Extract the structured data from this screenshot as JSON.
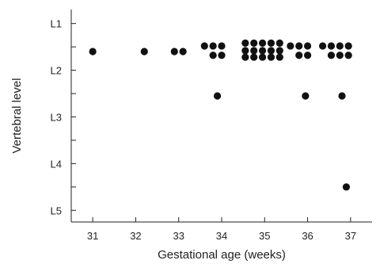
{
  "chart_data": {
    "type": "scatter",
    "title": "",
    "xlabel": "Gestational age (weeks)",
    "ylabel": "Vertebral level",
    "xlim": [
      30.5,
      37.5
    ],
    "x_ticks": [
      31,
      32,
      33,
      34,
      35,
      36,
      37
    ],
    "x_tick_labels": [
      "31",
      "32",
      "33",
      "34",
      "35",
      "36",
      "37"
    ],
    "ylim": [
      0.7,
      5.25
    ],
    "y_inverted": true,
    "y_ticks": [
      1,
      1.5,
      2,
      2.5,
      3,
      3.5,
      4,
      4.5,
      5
    ],
    "y_tick_labels": [
      "L1",
      "",
      "L2",
      "",
      "L3",
      "",
      "L4",
      "",
      "L5"
    ],
    "grid": false,
    "legend": "none",
    "points": [
      {
        "x": 31.0,
        "y": 1.6
      },
      {
        "x": 32.2,
        "y": 1.6
      },
      {
        "x": 32.9,
        "y": 1.6
      },
      {
        "x": 33.1,
        "y": 1.6
      },
      {
        "x": 33.6,
        "y": 1.48
      },
      {
        "x": 33.8,
        "y": 1.48
      },
      {
        "x": 34.0,
        "y": 1.48
      },
      {
        "x": 33.8,
        "y": 1.68
      },
      {
        "x": 34.0,
        "y": 1.68
      },
      {
        "x": 33.9,
        "y": 2.55
      },
      {
        "x": 34.55,
        "y": 1.42
      },
      {
        "x": 34.75,
        "y": 1.42
      },
      {
        "x": 34.95,
        "y": 1.42
      },
      {
        "x": 35.15,
        "y": 1.42
      },
      {
        "x": 35.35,
        "y": 1.42
      },
      {
        "x": 34.55,
        "y": 1.58
      },
      {
        "x": 34.75,
        "y": 1.58
      },
      {
        "x": 34.95,
        "y": 1.58
      },
      {
        "x": 35.15,
        "y": 1.58
      },
      {
        "x": 35.35,
        "y": 1.58
      },
      {
        "x": 34.55,
        "y": 1.72
      },
      {
        "x": 34.75,
        "y": 1.72
      },
      {
        "x": 34.95,
        "y": 1.72
      },
      {
        "x": 35.15,
        "y": 1.72
      },
      {
        "x": 35.35,
        "y": 1.72
      },
      {
        "x": 35.6,
        "y": 1.48
      },
      {
        "x": 35.8,
        "y": 1.48
      },
      {
        "x": 36.0,
        "y": 1.48
      },
      {
        "x": 35.8,
        "y": 1.68
      },
      {
        "x": 36.0,
        "y": 1.68
      },
      {
        "x": 35.95,
        "y": 2.55
      },
      {
        "x": 36.35,
        "y": 1.48
      },
      {
        "x": 36.55,
        "y": 1.48
      },
      {
        "x": 36.75,
        "y": 1.48
      },
      {
        "x": 36.95,
        "y": 1.48
      },
      {
        "x": 36.55,
        "y": 1.68
      },
      {
        "x": 36.75,
        "y": 1.68
      },
      {
        "x": 36.95,
        "y": 1.68
      },
      {
        "x": 36.8,
        "y": 2.55
      },
      {
        "x": 36.9,
        "y": 4.5
      }
    ]
  }
}
